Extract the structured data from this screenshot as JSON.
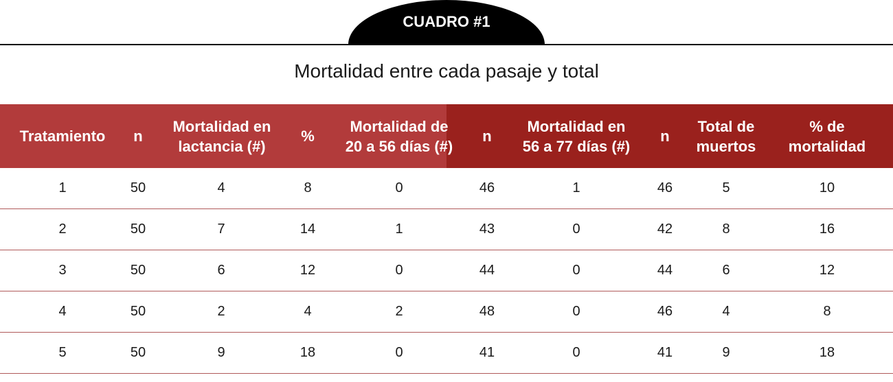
{
  "badge": {
    "label": "CUADRO #1"
  },
  "title": "Mortalidad entre cada pasaje y total",
  "table": {
    "headers": [
      "Tratamiento",
      "n",
      "Mortalidad en\nlactancia (#)",
      "%",
      "Mortalidad de\n20 a 56 días (#)",
      "n",
      "Mortalidad en\n56 a 77 días (#)",
      "n",
      "Total de\nmuertos",
      "% de\nmortalidad"
    ],
    "rows": [
      [
        "1",
        "50",
        "4",
        "8",
        "0",
        "46",
        "1",
        "46",
        "5",
        "10"
      ],
      [
        "2",
        "50",
        "7",
        "14",
        "1",
        "43",
        "0",
        "42",
        "8",
        "16"
      ],
      [
        "3",
        "50",
        "6",
        "12",
        "0",
        "44",
        "0",
        "44",
        "6",
        "12"
      ],
      [
        "4",
        "50",
        "2",
        "4",
        "2",
        "48",
        "0",
        "46",
        "4",
        "8"
      ],
      [
        "5",
        "50",
        "9",
        "18",
        "0",
        "41",
        "0",
        "41",
        "9",
        "18"
      ]
    ]
  },
  "colors": {
    "header_left": "#b23b3b",
    "header_right": "#9a211d",
    "row_divider": "#b05a5a",
    "badge": "#000000"
  }
}
